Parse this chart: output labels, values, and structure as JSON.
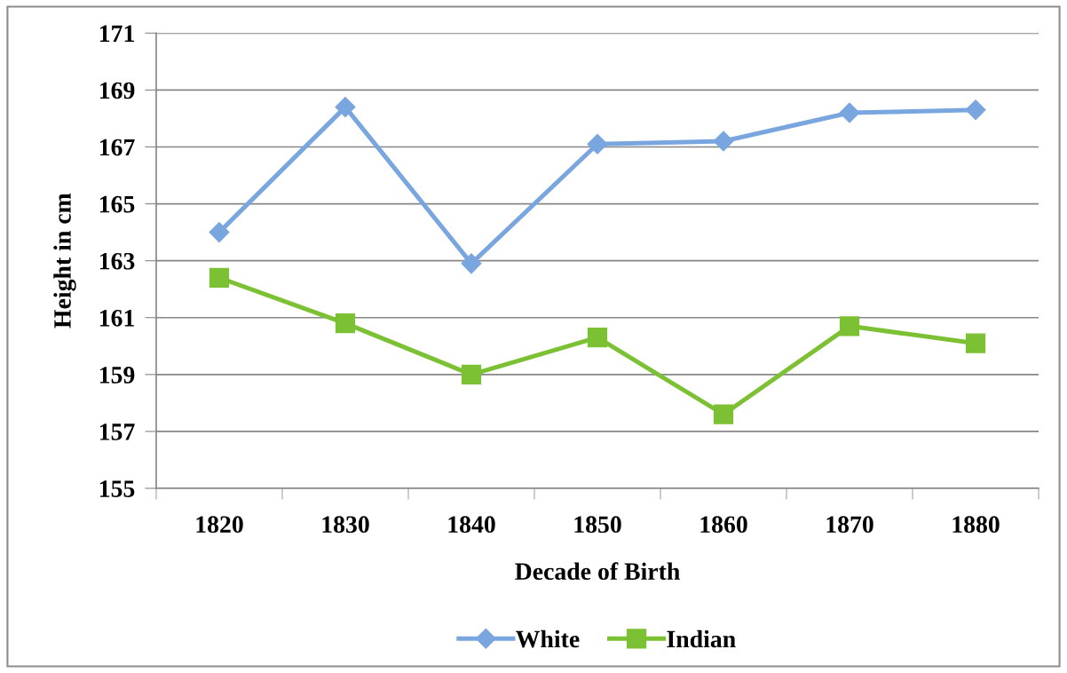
{
  "chart_data": {
    "type": "line",
    "xlabel": "Decade of Birth",
    "ylabel": "Height in cm",
    "categories": [
      "1820",
      "1830",
      "1840",
      "1850",
      "1860",
      "1870",
      "1880"
    ],
    "series": [
      {
        "name": "White",
        "color": "#7aa6e0",
        "marker": "diamond",
        "values": [
          164.0,
          168.4,
          162.9,
          167.1,
          167.2,
          168.2,
          168.3
        ]
      },
      {
        "name": "Indian",
        "color": "#7cc134",
        "marker": "square",
        "values": [
          162.4,
          160.8,
          159.0,
          160.3,
          157.6,
          160.7,
          160.1
        ]
      }
    ],
    "ylim": [
      155,
      171
    ],
    "yticks": [
      155,
      157,
      159,
      161,
      163,
      165,
      167,
      169,
      171
    ],
    "grid": "y",
    "legend": "bottom",
    "line_style": "solid"
  }
}
